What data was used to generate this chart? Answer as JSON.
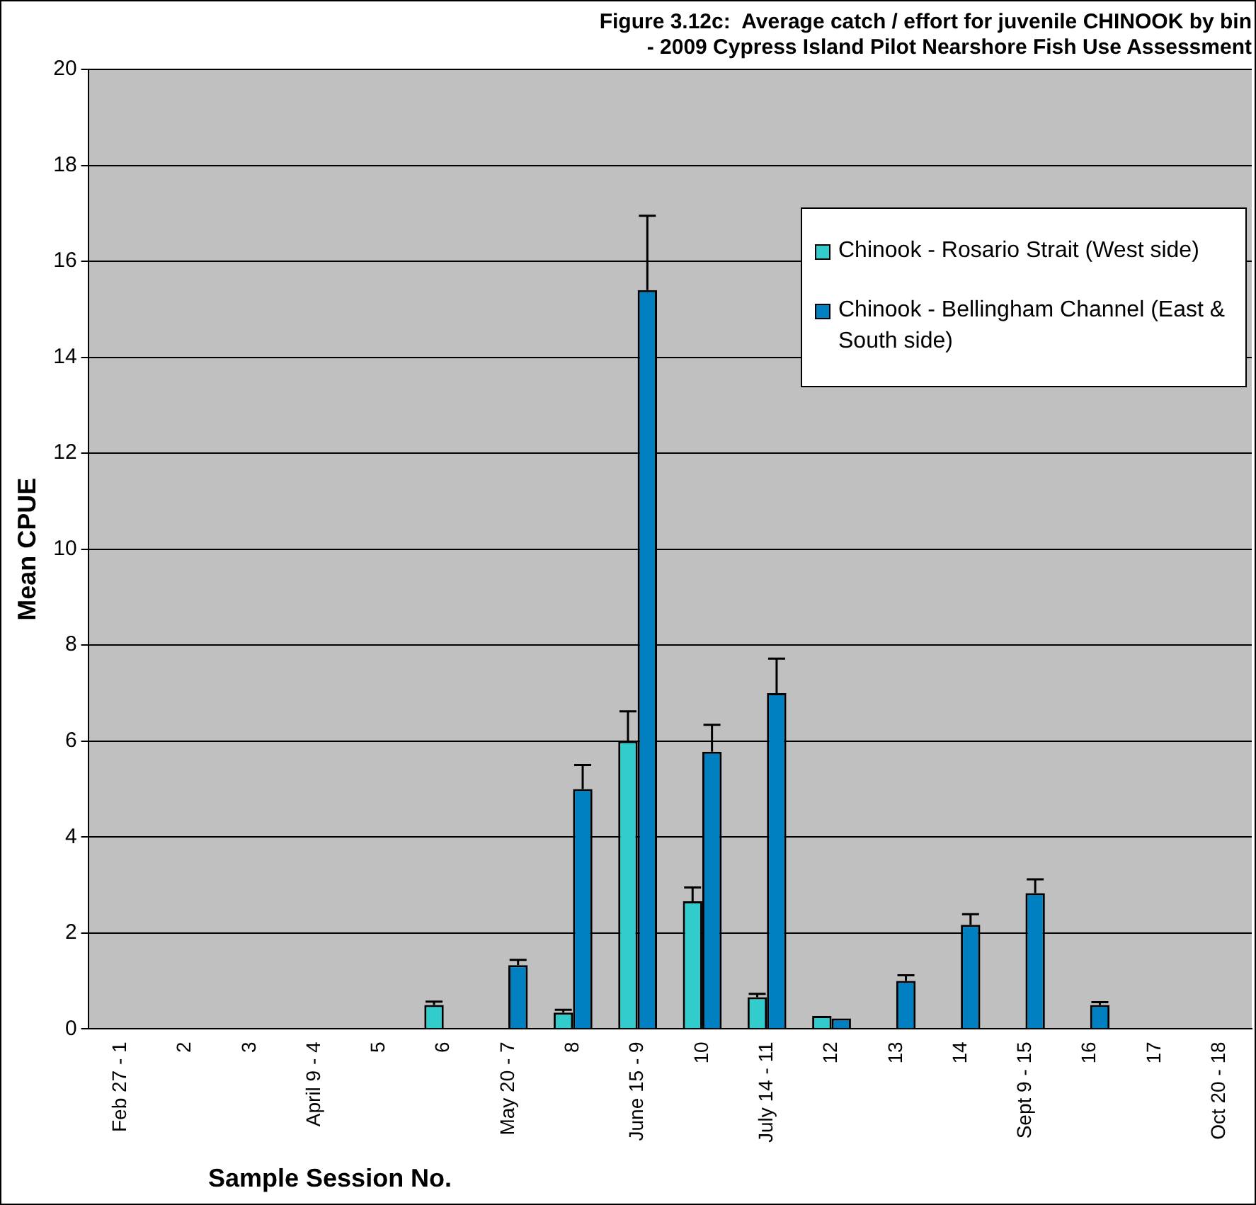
{
  "chart_data": {
    "type": "bar",
    "title": "Figure 3.12c:  Average catch / effort for juvenile CHINOOK by bin\n- 2009 Cypress Island Pilot Nearshore Fish Use Assessment",
    "xlabel": "Sample Session No.",
    "ylabel": "Mean CPUE",
    "categories": [
      "Feb 27 - 1",
      "2",
      "3",
      "April 9 - 4",
      "5",
      "6",
      "May 20 - 7",
      "8",
      "June 15 - 9",
      "10",
      "July 14 - 11",
      "12",
      "13",
      "14",
      "Sept 9 - 15",
      "16",
      "17",
      "Oct 20 - 18"
    ],
    "series": [
      {
        "name": "Chinook - Rosario Strait (West side)",
        "color": "#33cccc",
        "values": [
          0,
          0,
          0,
          0,
          0,
          0.5,
          0,
          0.34,
          6,
          2.66,
          0.66,
          0.27,
          0,
          0,
          0,
          0,
          0,
          0
        ],
        "errors": [
          null,
          null,
          null,
          null,
          null,
          [
            0.5,
            0.57
          ],
          null,
          [
            0.34,
            0.4
          ],
          [
            6,
            6.62
          ],
          [
            2.66,
            2.95
          ],
          [
            0.66,
            0.73
          ],
          null,
          null,
          null,
          null,
          null,
          null,
          null
        ]
      },
      {
        "name": "Chinook - Bellingham Channel (East & South side)",
        "color": "#0080c0",
        "values": [
          0,
          0,
          0,
          0,
          0,
          0,
          1.33,
          5,
          15.4,
          5.78,
          7,
          0.22,
          1,
          2.17,
          2.83,
          0.5,
          0,
          0
        ],
        "errors": [
          null,
          null,
          null,
          null,
          null,
          null,
          [
            1.33,
            1.44
          ],
          [
            5,
            5.5
          ],
          [
            15.4,
            16.95
          ],
          [
            5.78,
            6.34
          ],
          [
            7,
            7.72
          ],
          null,
          [
            1,
            1.12
          ],
          [
            2.17,
            2.39
          ],
          [
            2.83,
            3.12
          ],
          [
            0.5,
            0.56
          ],
          null,
          null
        ]
      }
    ],
    "ylim": [
      0,
      20
    ],
    "yticks": [
      0,
      2,
      4,
      6,
      8,
      10,
      12,
      14,
      16,
      18,
      20
    ],
    "grid": "y",
    "legend": "top right"
  }
}
